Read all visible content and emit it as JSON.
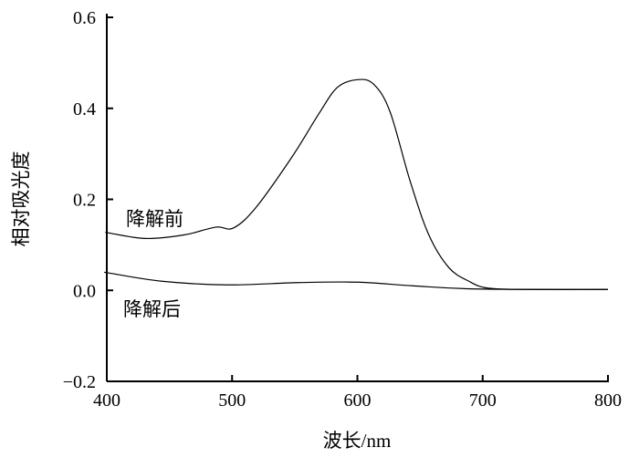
{
  "chart_data": {
    "type": "line",
    "title": "",
    "xlabel": "波长/nm",
    "ylabel": "相对吸光度",
    "xlim": [
      400,
      800
    ],
    "ylim": [
      -0.2,
      0.6
    ],
    "xticks": [
      400,
      500,
      600,
      700,
      800
    ],
    "xtick_labels": [
      "400",
      "500",
      "600",
      "700",
      "800"
    ],
    "yticks": [
      -0.2,
      0.0,
      0.2,
      0.4,
      0.6
    ],
    "ytick_labels": [
      "−0.2",
      "0.0",
      "0.2",
      "0.4",
      "0.6"
    ],
    "grid": false,
    "legend": "none",
    "series": [
      {
        "name": "降解前",
        "x": [
          400,
          402,
          431,
          462,
          487,
          501,
          519,
          548,
          569,
          584,
          600,
          613,
          626,
          642,
          657,
          673,
          689,
          704,
          735,
          800
        ],
        "y": [
          0.128,
          0.126,
          0.114,
          0.122,
          0.139,
          0.137,
          0.182,
          0.294,
          0.387,
          0.446,
          0.463,
          0.453,
          0.393,
          0.241,
          0.122,
          0.05,
          0.02,
          0.005,
          0.002,
          0.002
        ]
      },
      {
        "name": "降解后",
        "x": [
          400,
          402,
          444,
          496,
          553,
          600,
          644,
          696,
          800
        ],
        "y": [
          0.039,
          0.038,
          0.02,
          0.012,
          0.017,
          0.018,
          0.01,
          0.003,
          0.002
        ]
      }
    ],
    "annotations": [
      "降解前",
      "降解后"
    ]
  }
}
